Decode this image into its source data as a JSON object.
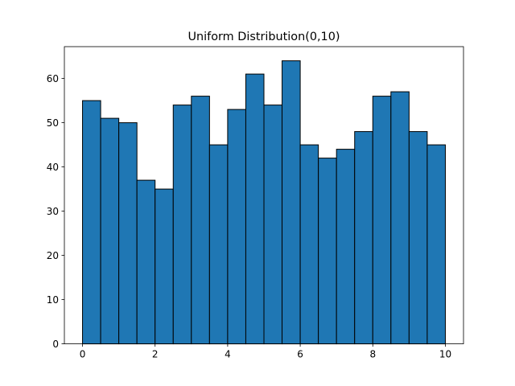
{
  "chart_data": {
    "type": "bar",
    "title": "Uniform Distribution(0,10)",
    "xlabel": "",
    "ylabel": "",
    "bin_edges": [
      0,
      0.5,
      1,
      1.5,
      2,
      2.5,
      3,
      3.5,
      4,
      4.5,
      5,
      5.5,
      6,
      6.5,
      7,
      7.5,
      8,
      8.5,
      9,
      9.5,
      10
    ],
    "values": [
      55,
      51,
      50,
      37,
      35,
      54,
      56,
      45,
      53,
      61,
      54,
      64,
      45,
      42,
      44,
      48,
      56,
      57,
      48,
      45
    ],
    "xlim": [
      -0.5,
      10.5
    ],
    "ylim": [
      0,
      67.2
    ],
    "xticks": [
      "0",
      "2",
      "4",
      "6",
      "8",
      "10"
    ],
    "yticks": [
      "0",
      "10",
      "20",
      "30",
      "40",
      "50",
      "60"
    ],
    "grid": false,
    "bar_color": "#1f77b4",
    "edge_color": "#000000"
  }
}
